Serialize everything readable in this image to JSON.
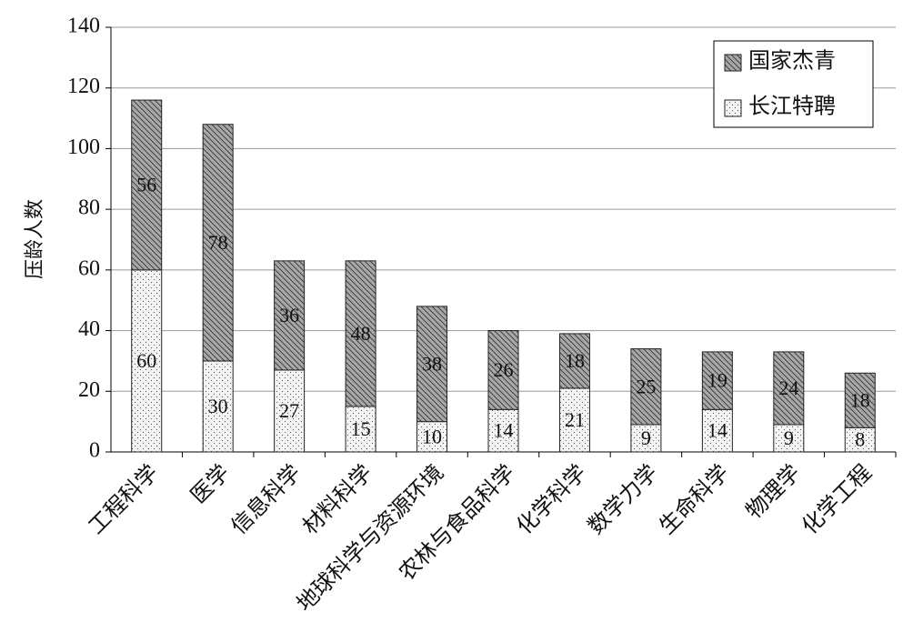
{
  "chart_data": {
    "type": "stacked_bar",
    "y_label": "压龄人数",
    "categories": [
      "工程科学",
      "医学",
      "信息科学",
      "材料科学",
      "地球科学与资源环境",
      "农林与食品科学",
      "化学科学",
      "数学力学",
      "生命科学",
      "物理学",
      "化学工程"
    ],
    "series": [
      {
        "name": "长江特聘",
        "color": "#f4f4f4",
        "pattern": "dots",
        "values": [
          60,
          30,
          27,
          15,
          10,
          14,
          21,
          9,
          14,
          9,
          8
        ]
      },
      {
        "name": "国家杰青",
        "color": "#a8a8a8",
        "pattern": "hatch",
        "values": [
          56,
          78,
          36,
          48,
          38,
          26,
          18,
          25,
          19,
          24,
          18
        ]
      }
    ],
    "ylim": [
      0,
      140
    ],
    "yticks": [
      0,
      20,
      40,
      60,
      80,
      100,
      120,
      140
    ],
    "grid": true,
    "legend": "upper right"
  }
}
